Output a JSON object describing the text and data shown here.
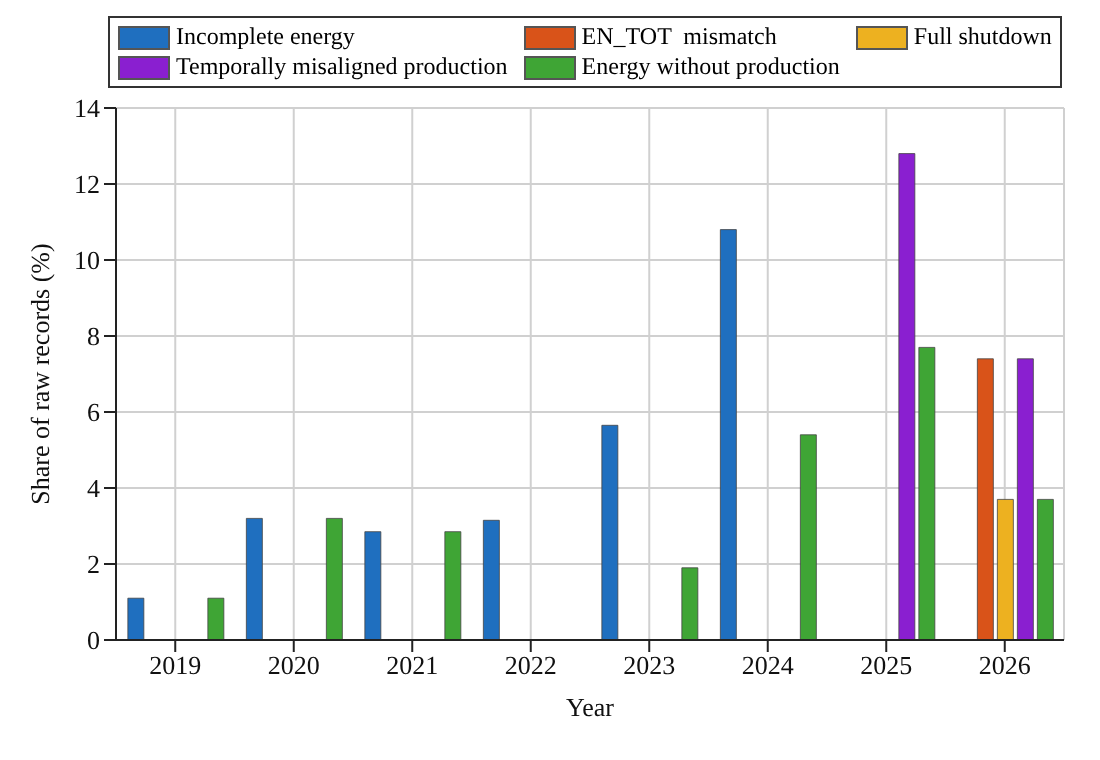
{
  "chart_data": {
    "type": "bar",
    "xlabel": "Year",
    "ylabel": "Share of raw records (%)",
    "categories": [
      "2019",
      "2020",
      "2021",
      "2022",
      "2023",
      "2024",
      "2025",
      "2026"
    ],
    "series": [
      {
        "name": "Incomplete energy",
        "color": "#1f6fbf",
        "values": [
          1.1,
          3.2,
          2.85,
          3.15,
          5.65,
          10.8,
          0,
          0
        ]
      },
      {
        "name": "EN_TOT  mismatch",
        "color": "#d95319",
        "values": [
          0,
          0,
          0,
          0,
          0,
          0,
          0,
          7.4
        ]
      },
      {
        "name": "Full shutdown",
        "color": "#edb120",
        "values": [
          0,
          0,
          0,
          0,
          0,
          0,
          0,
          3.7
        ]
      },
      {
        "name": "Temporally misaligned production",
        "color": "#8a1fd0",
        "values": [
          0,
          0,
          0,
          0,
          0,
          0,
          12.8,
          7.4
        ]
      },
      {
        "name": "Energy without production",
        "color": "#3fa535",
        "values": [
          1.1,
          3.2,
          2.85,
          0,
          1.9,
          5.4,
          7.7,
          3.7
        ]
      }
    ],
    "ylim": [
      0,
      14
    ],
    "yticks": [
      0,
      2,
      4,
      6,
      8,
      10,
      12,
      14
    ],
    "grid": true,
    "legend": "top"
  }
}
